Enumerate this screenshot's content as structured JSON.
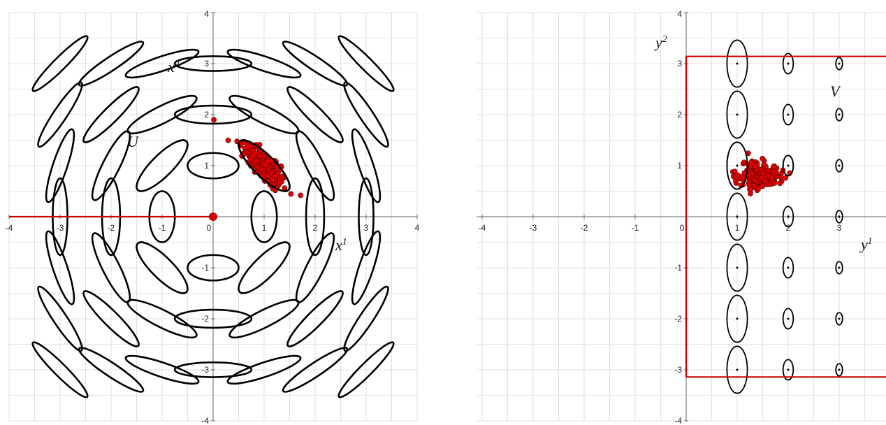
{
  "left_plot": {
    "xlim": [
      -4,
      4
    ],
    "ylim": [
      -4,
      4
    ],
    "xticks": [
      "-4",
      "-3",
      "-2",
      "-1",
      "0",
      "1",
      "2",
      "3",
      "4"
    ],
    "yticks": [
      "4",
      "3",
      "2",
      "1",
      "-1",
      "-2",
      "-3",
      "-4"
    ],
    "xlabel": "x",
    "xlabel_sup": "1",
    "ylabel": "x",
    "ylabel_sup": "2",
    "region_label": "U",
    "colors": {
      "ellipse": "#000000",
      "boundary": "#cc0000",
      "points": "#e00000",
      "grid": "#d8d8d8"
    }
  },
  "right_plot": {
    "xlim": [
      -4,
      4
    ],
    "ylim": [
      -4,
      4
    ],
    "xticks": [
      "-4",
      "-3",
      "-2",
      "-1",
      "0",
      "1",
      "2",
      "3"
    ],
    "yticks": [
      "4",
      "3",
      "2",
      "1",
      "-1",
      "-2",
      "-3",
      "-4"
    ],
    "xlabel": "y",
    "xlabel_sup": "1",
    "ylabel": "y",
    "ylabel_sup": "2",
    "region_label": "V",
    "colors": {
      "ellipse": "#000000",
      "boundary": "#cc0000",
      "points": "#e00000",
      "grid": "#d8d8d8"
    }
  }
}
